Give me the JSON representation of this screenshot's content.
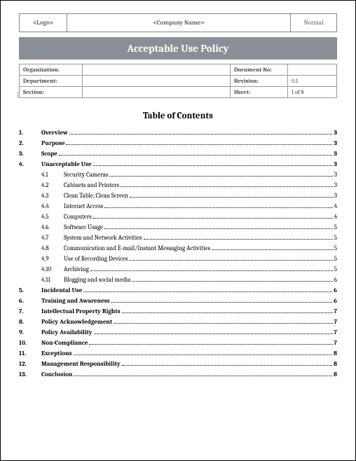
{
  "header": {
    "logo": "<Logo>",
    "company": "<Company Name>",
    "style": "Normal"
  },
  "title": "Acceptable Use Policy",
  "meta": [
    {
      "left_label": "Organization:",
      "left_value": "",
      "right_label": "Document No:",
      "right_value": ""
    },
    {
      "left_label": "Department:",
      "left_value": "",
      "right_label": "Revision:",
      "right_value": "0.1"
    },
    {
      "left_label": "Section:",
      "left_value": "",
      "right_label": "Sheet:",
      "right_value": "1 of 8"
    }
  ],
  "toc_heading": "Table of Contents",
  "toc": [
    {
      "num": "1.",
      "title": "Overview",
      "page": "3",
      "sub": false
    },
    {
      "num": "2.",
      "title": "Purpose",
      "page": "3",
      "sub": false
    },
    {
      "num": "3.",
      "title": "Scope",
      "page": "3",
      "sub": false
    },
    {
      "num": "4.",
      "title": "Unacceptable Use",
      "page": "3",
      "sub": false
    },
    {
      "num": "4.1",
      "title": "Security Cameras",
      "page": "3",
      "sub": true
    },
    {
      "num": "4.2",
      "title": "Cabinets and Printers",
      "page": "3",
      "sub": true
    },
    {
      "num": "4.3",
      "title": "Clean Table, Clean Screen",
      "page": "3",
      "sub": true
    },
    {
      "num": "4.4",
      "title": "Internet Access",
      "page": "4",
      "sub": true
    },
    {
      "num": "4.5",
      "title": "Computers",
      "page": "4",
      "sub": true
    },
    {
      "num": "4.6",
      "title": "Software Usage",
      "page": "5",
      "sub": true
    },
    {
      "num": "4.7",
      "title": "System and Network Activities",
      "page": "5",
      "sub": true
    },
    {
      "num": "4.8",
      "title": "Communication and E-mail/Instant Messaging Activities",
      "page": "5",
      "sub": true
    },
    {
      "num": "4.9",
      "title": "Use of Recording Devices",
      "page": "5",
      "sub": true
    },
    {
      "num": "4.10",
      "title": "Archiving",
      "page": "5",
      "sub": true
    },
    {
      "num": "4.11",
      "title": "Blogging and social media",
      "page": "6",
      "sub": true
    },
    {
      "num": "5.",
      "title": "Incidental Use",
      "page": "6",
      "sub": false
    },
    {
      "num": "6.",
      "title": "Training and Awareness",
      "page": "6",
      "sub": false
    },
    {
      "num": "7.",
      "title": "Intellectual Property Rights",
      "page": "7",
      "sub": false
    },
    {
      "num": "8.",
      "title": "Policy Acknowledgement",
      "page": "7",
      "sub": false
    },
    {
      "num": "9.",
      "title": "Policy Availability",
      "page": "7",
      "sub": false
    },
    {
      "num": "10.",
      "title": "Non-Compliance",
      "page": "7",
      "sub": false
    },
    {
      "num": "11.",
      "title": "Exceptions",
      "page": "8",
      "sub": false
    },
    {
      "num": "12.",
      "title": "Management Responsibility",
      "page": "8",
      "sub": false
    },
    {
      "num": "13.",
      "title": "Conclusion",
      "page": "8",
      "sub": false
    }
  ]
}
